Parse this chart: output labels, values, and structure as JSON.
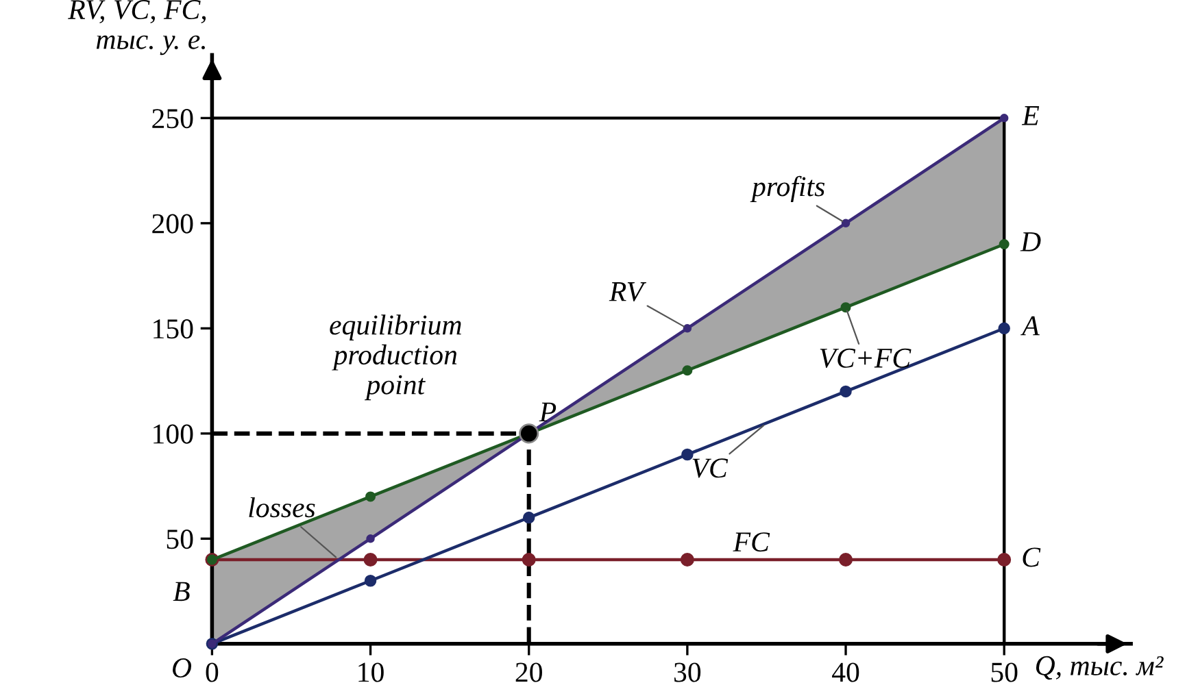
{
  "chart_data": {
    "type": "line",
    "xlabel": "Q, тыс. м²",
    "ylabel": "RV, VC, FC,\nтыс. у. е.",
    "x": [
      0,
      10,
      20,
      30,
      40,
      50
    ],
    "xlim": [
      0,
      58
    ],
    "ylim": [
      0,
      280
    ],
    "xticks": [
      0,
      10,
      20,
      30,
      40,
      50
    ],
    "yticks": [
      50,
      100,
      150,
      200,
      250
    ],
    "grid": false,
    "legend": false,
    "marker": "circle",
    "line_style": "solid",
    "series": [
      {
        "color": "#3b2a78",
        "values": [
          0,
          50,
          100,
          150,
          200,
          250
        ],
        "lower": [
          0,
          50,
          100,
          130,
          160,
          190
        ],
        "upper": [
          40,
          70,
          100,
          150,
          200,
          250
        ]
      },
      {
        "color": "#1f5a22",
        "values": [
          40,
          70,
          100,
          130,
          160,
          190
        ]
      },
      {
        "color": "#1c2c6a",
        "values": [
          0,
          30,
          60,
          90,
          120,
          150
        ]
      },
      {
        "color": "#7a1f2a",
        "values": [
          40,
          40,
          40,
          40,
          40,
          40
        ]
      },
      {
        "type": "line",
        "color": "#000000",
        "x": [
          0,
          20,
          20
        ],
        "values": [
          100,
          100,
          0
        ],
        "line_style": "dashed",
        "marker": "none"
      },
      {
        "type": "line",
        "color": "#000000",
        "x": [
          0,
          50,
          50
        ],
        "values": [
          250,
          250,
          0
        ],
        "marker": "none"
      },
      {
        "type": "scatter",
        "color": "#000000",
        "x": [
          20
        ],
        "values": [
          100
        ]
      }
    ],
    "annotations": [
      {
        "text": "profits",
        "x": 40,
        "y": 200
      },
      {
        "text": "RV",
        "x": 30,
        "y": 150
      },
      {
        "text": "equilibrium\nproduction\npoint",
        "x": 20,
        "y": 100
      },
      {
        "text": "P",
        "x": 20,
        "y": 100
      },
      {
        "text": "VC+FC",
        "x": 40,
        "y": 160
      },
      {
        "text": "VC",
        "x": 35,
        "y": 105
      },
      {
        "text": "losses",
        "x": 8,
        "y": 40
      },
      {
        "text": "FC",
        "x": 35,
        "y": 40
      },
      {
        "text": "E",
        "x": 50,
        "y": 250
      },
      {
        "text": "D",
        "x": 50,
        "y": 190
      },
      {
        "text": "A",
        "x": 50,
        "y": 150
      },
      {
        "text": "C",
        "x": 50,
        "y": 40
      },
      {
        "text": "B",
        "x": 0,
        "y": 40
      },
      {
        "text": "O",
        "x": 0,
        "y": 0
      }
    ]
  }
}
